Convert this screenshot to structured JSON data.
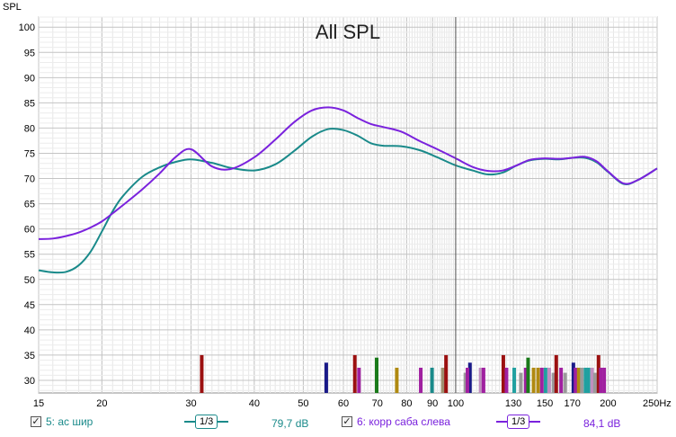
{
  "chart_data": {
    "type": "line",
    "title": "All SPL",
    "ylabel": "SPL",
    "xunit": "Hz",
    "xscale": "log",
    "xlim": [
      15,
      250
    ],
    "ylim": [
      27.5,
      102
    ],
    "yticks": [
      30,
      35,
      40,
      45,
      50,
      55,
      60,
      65,
      70,
      75,
      80,
      85,
      90,
      95,
      100
    ],
    "xticks": [
      {
        "v": 15,
        "t": "15"
      },
      {
        "v": 20,
        "t": "20"
      },
      {
        "v": 30,
        "t": "30"
      },
      {
        "v": 40,
        "t": "40"
      },
      {
        "v": 50,
        "t": "50"
      },
      {
        "v": 60,
        "t": "60"
      },
      {
        "v": 70,
        "t": "70"
      },
      {
        "v": 80,
        "t": "80"
      },
      {
        "v": 90,
        "t": "90"
      },
      {
        "v": 100,
        "t": "100"
      },
      {
        "v": 130,
        "t": "130"
      },
      {
        "v": 150,
        "t": "150"
      },
      {
        "v": 170,
        "t": "170"
      },
      {
        "v": 200,
        "t": "200"
      },
      {
        "v": 250,
        "t": "250Hz"
      }
    ],
    "cursor_x": 100,
    "grid": true,
    "series": [
      {
        "name": "5: ас шир",
        "color": "#1a8a8a",
        "x": [
          15,
          16,
          17,
          18,
          19,
          20,
          21,
          22,
          24,
          26,
          28,
          30,
          33,
          36,
          40,
          44,
          48,
          52,
          56,
          60,
          64,
          68,
          72,
          78,
          85,
          92,
          100,
          108,
          116,
          124,
          132,
          140,
          150,
          160,
          170,
          180,
          190,
          200,
          215,
          230,
          250
        ],
        "values": [
          51.8,
          51.4,
          51.5,
          52.8,
          55.5,
          59.5,
          63.5,
          66.5,
          70.3,
          72.2,
          73.3,
          73.8,
          73.1,
          72.1,
          71.6,
          72.8,
          75.5,
          78.3,
          79.8,
          79.6,
          78.5,
          77,
          76.5,
          76.4,
          75.6,
          74.2,
          72.6,
          71.6,
          70.8,
          71.2,
          72.6,
          73.6,
          73.9,
          73.8,
          74.1,
          74.1,
          73.2,
          71.3,
          68.9,
          69.8,
          72
        ]
      },
      {
        "name": "6: корр саба слева",
        "color": "#7a22dd",
        "x": [
          15,
          16,
          17,
          18,
          19,
          20,
          21,
          22,
          24,
          26,
          28,
          30,
          33,
          36,
          40,
          44,
          48,
          52,
          56,
          60,
          64,
          68,
          72,
          78,
          85,
          92,
          100,
          108,
          116,
          124,
          132,
          140,
          150,
          160,
          170,
          180,
          190,
          200,
          215,
          230,
          250
        ],
        "values": [
          58,
          58.1,
          58.6,
          59.3,
          60.3,
          61.5,
          63.1,
          64.7,
          67.8,
          71,
          74.3,
          75.8,
          72.4,
          71.9,
          74.2,
          77.7,
          81.2,
          83.5,
          84.1,
          83.5,
          82,
          80.8,
          80.2,
          79.3,
          77.4,
          75.8,
          74,
          72.3,
          71.5,
          71.6,
          72.6,
          73.7,
          74,
          73.9,
          74.1,
          74.3,
          73.4,
          71.4,
          69,
          69.8,
          72
        ]
      }
    ],
    "markers": [
      {
        "x": 31.5,
        "top": 35,
        "color": "#9b1010"
      },
      {
        "x": 55.5,
        "top": 33.5,
        "color": "#1a1a88"
      },
      {
        "x": 63.2,
        "top": 35,
        "color": "#9b1010"
      },
      {
        "x": 64.4,
        "top": 32.5,
        "color": "#a020a0"
      },
      {
        "x": 69.8,
        "top": 34.5,
        "color": "#1a7a1a"
      },
      {
        "x": 76.5,
        "top": 32.5,
        "color": "#b08a10"
      },
      {
        "x": 85.3,
        "top": 32.5,
        "color": "#a020a0"
      },
      {
        "x": 89.8,
        "top": 32.5,
        "color": "#1a8a8a"
      },
      {
        "x": 94.3,
        "top": 32.5,
        "color": "#a09070"
      },
      {
        "x": 95.7,
        "top": 35,
        "color": "#9b1010"
      },
      {
        "x": 104.5,
        "top": 31.5,
        "color": "#9a9a9a"
      },
      {
        "x": 106.7,
        "top": 33.5,
        "color": "#1a1a88"
      },
      {
        "x": 105.5,
        "top": 32.5,
        "color": "#a020a0"
      },
      {
        "x": 112,
        "top": 32.5,
        "color": "#c090c0"
      },
      {
        "x": 113.5,
        "top": 32.5,
        "color": "#a020a0"
      },
      {
        "x": 124.2,
        "top": 35,
        "color": "#9b1010"
      },
      {
        "x": 126,
        "top": 32.5,
        "color": "#a020a0"
      },
      {
        "x": 130.5,
        "top": 32.5,
        "color": "#20a0a0"
      },
      {
        "x": 134.5,
        "top": 31.5,
        "color": "#9a9a9a"
      },
      {
        "x": 137.5,
        "top": 32.5,
        "color": "#a020a0"
      },
      {
        "x": 139,
        "top": 34.5,
        "color": "#1a7a1a"
      },
      {
        "x": 142.5,
        "top": 32.5,
        "color": "#b08a10"
      },
      {
        "x": 145.5,
        "top": 32.5,
        "color": "#b08a10"
      },
      {
        "x": 148,
        "top": 32.5,
        "color": "#a020a0"
      },
      {
        "x": 150.5,
        "top": 32.5,
        "color": "#20a0a0"
      },
      {
        "x": 153,
        "top": 32.5,
        "color": "#c090c0"
      },
      {
        "x": 156,
        "top": 31.5,
        "color": "#9a9a9a"
      },
      {
        "x": 158,
        "top": 35,
        "color": "#9b1010"
      },
      {
        "x": 161.5,
        "top": 32.5,
        "color": "#a020a0"
      },
      {
        "x": 164.5,
        "top": 31.5,
        "color": "#9a9a9a"
      },
      {
        "x": 170.8,
        "top": 33.5,
        "color": "#1a1a88"
      },
      {
        "x": 172.5,
        "top": 32.5,
        "color": "#a020a0"
      },
      {
        "x": 175,
        "top": 32.5,
        "color": "#b08a10"
      },
      {
        "x": 177.5,
        "top": 32.5,
        "color": "#9a9a9a"
      },
      {
        "x": 180.5,
        "top": 32.5,
        "color": "#20a0a0"
      },
      {
        "x": 183,
        "top": 32.5,
        "color": "#20a0a0"
      },
      {
        "x": 186,
        "top": 32.5,
        "color": "#c090c0"
      },
      {
        "x": 188.5,
        "top": 31.5,
        "color": "#9a9a9a"
      },
      {
        "x": 191.5,
        "top": 35,
        "color": "#9b1010"
      },
      {
        "x": 193.5,
        "top": 32.5,
        "color": "#a020a0"
      },
      {
        "x": 196.5,
        "top": 32.5,
        "color": "#a020a0"
      }
    ]
  },
  "legend": [
    {
      "label": "5: ас шир",
      "smoothing": "1/3",
      "value": "79,7 dB",
      "color": "#1a8a8a",
      "checked": "✓"
    },
    {
      "label": "6: корр саба слева",
      "smoothing": "1/3",
      "value": "84,1 dB",
      "color": "#7a22dd",
      "checked": "✓"
    }
  ]
}
